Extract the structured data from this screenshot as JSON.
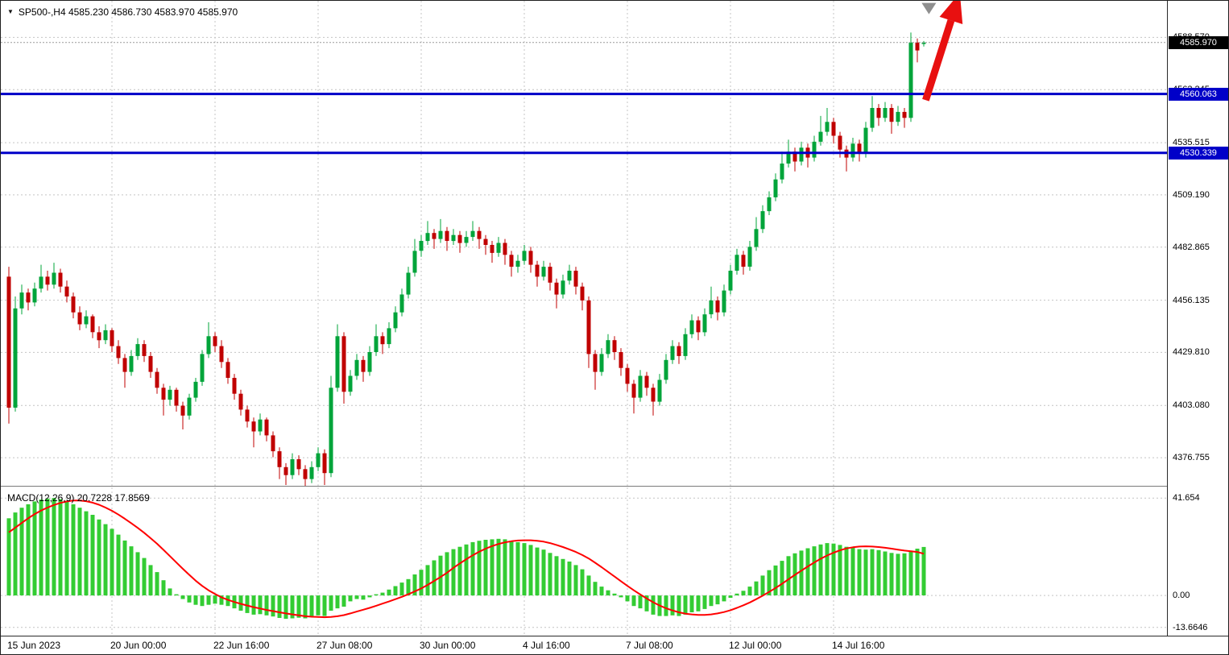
{
  "header": {
    "symbol_marker": "▼",
    "title": "SP500-,H4 4585.230 4586.730 4583.970 4585.970"
  },
  "macd": {
    "label": "MACD(12,26,9) 20.7228 17.8569",
    "axis_labels": [
      "41.654",
      "0.00",
      "-13.6646"
    ],
    "axis_values": [
      41.654,
      0,
      -13.6646
    ]
  },
  "price_axis": {
    "tick_labels": [
      "4588.570",
      "4562.245",
      "4535.515",
      "4509.190",
      "4482.865",
      "4456.135",
      "4429.810",
      "4403.080",
      "4376.755"
    ],
    "tick_values": [
      4588.57,
      4562.245,
      4535.515,
      4509.19,
      4482.865,
      4456.135,
      4429.81,
      4403.08,
      4376.755
    ],
    "current_price_label": "4585.970",
    "line_badges": [
      {
        "label": "4560.063",
        "value": 4560.063
      },
      {
        "label": "4530.339",
        "value": 4530.339
      }
    ]
  },
  "time_axis": {
    "labels": [
      "15 Jun 2023",
      "20 Jun 00:00",
      "22 Jun 16:00",
      "27 Jun 08:00",
      "30 Jun 00:00",
      "4 Jul 16:00",
      "7 Jul 08:00",
      "12 Jul 00:00",
      "14 Jul 16:00"
    ],
    "bar_indices": [
      0,
      16,
      32,
      48,
      64,
      80,
      96,
      112,
      128
    ]
  },
  "colors": {
    "bull": "#00a43a",
    "bear": "#c00000",
    "macd_hist": "#33cc33",
    "macd_signal": "#ff0000",
    "level_line": "#0000c8",
    "current_badge_bg": "#000000",
    "grid": "#c4c4c4",
    "arrow": "#e81010",
    "marker": "#8f8f8f"
  },
  "annotations": [
    {
      "type": "arrow",
      "from_bar": 142.3,
      "from_price": 4557,
      "to_bar": 147.6,
      "to_price": 4611,
      "color": "#e81010"
    },
    {
      "type": "triangle-marker",
      "bar": 142.8,
      "price": 4603.5,
      "color": "#8f8f8f"
    }
  ],
  "chart_data": [
    {
      "type": "candlestick",
      "title": "SP500-",
      "timeframe": "H4",
      "ylim": [
        4362.6,
        4607.0
      ],
      "grid": true,
      "current_price": 4585.97,
      "current_ohlc": [
        4585.23,
        4586.73,
        4583.97,
        4585.97
      ],
      "horizontal_lines": [
        4560.063,
        4530.339
      ],
      "ohlc": [
        [
          4468,
          4473,
          4394,
          4402
        ],
        [
          4402,
          4458,
          4400,
          4452
        ],
        [
          4452,
          4464,
          4449,
          4460
        ],
        [
          4460,
          4462,
          4451,
          4455
        ],
        [
          4455,
          4465,
          4453,
          4462
        ],
        [
          4462,
          4474,
          4460,
          4468
        ],
        [
          4468,
          4471,
          4461,
          4464
        ],
        [
          4464,
          4475,
          4462,
          4470
        ],
        [
          4470,
          4472,
          4460,
          4463
        ],
        [
          4463,
          4466,
          4455,
          4458
        ],
        [
          4458,
          4460,
          4447,
          4450
        ],
        [
          4450,
          4453,
          4441,
          4444
        ],
        [
          4444,
          4451,
          4442,
          4448
        ],
        [
          4448,
          4449,
          4437,
          4440
        ],
        [
          4440,
          4443,
          4432,
          4436
        ],
        [
          4436,
          4444,
          4434,
          4441
        ],
        [
          4441,
          4442,
          4430,
          4433
        ],
        [
          4433,
          4436,
          4424,
          4427
        ],
        [
          4427,
          4429,
          4412,
          4420
        ],
        [
          4420,
          4431,
          4418,
          4428
        ],
        [
          4428,
          4437,
          4426,
          4434
        ],
        [
          4434,
          4436,
          4425,
          4428
        ],
        [
          4428,
          4430,
          4417,
          4420
        ],
        [
          4420,
          4422,
          4409,
          4412
        ],
        [
          4412,
          4414,
          4398,
          4406
        ],
        [
          4406,
          4413,
          4403,
          4411
        ],
        [
          4411,
          4412,
          4400,
          4403
        ],
        [
          4403,
          4405,
          4391,
          4398
        ],
        [
          4398,
          4409,
          4396,
          4407
        ],
        [
          4407,
          4417,
          4405,
          4415
        ],
        [
          4415,
          4431,
          4413,
          4429
        ],
        [
          4429,
          4445,
          4427,
          4438
        ],
        [
          4438,
          4440,
          4430,
          4433
        ],
        [
          4433,
          4436,
          4422,
          4425
        ],
        [
          4425,
          4427,
          4414,
          4417
        ],
        [
          4417,
          4419,
          4406,
          4409
        ],
        [
          4409,
          4411,
          4398,
          4401
        ],
        [
          4401,
          4403,
          4392,
          4395
        ],
        [
          4395,
          4397,
          4382,
          4390
        ],
        [
          4390,
          4399,
          4388,
          4396
        ],
        [
          4396,
          4397,
          4385,
          4388
        ],
        [
          4388,
          4390,
          4377,
          4380
        ],
        [
          4380,
          4382,
          4366,
          4372
        ],
        [
          4372,
          4374,
          4363,
          4368
        ],
        [
          4368,
          4379,
          4366,
          4376
        ],
        [
          4376,
          4378,
          4368,
          4371
        ],
        [
          4371,
          4373,
          4362,
          4366
        ],
        [
          4366,
          4375,
          4364,
          4372
        ],
        [
          4372,
          4382,
          4370,
          4379
        ],
        [
          4379,
          4381,
          4363,
          4369
        ],
        [
          4369,
          4418,
          4367,
          4412
        ],
        [
          4412,
          4444,
          4410,
          4438
        ],
        [
          4438,
          4440,
          4404,
          4410
        ],
        [
          4410,
          4421,
          4408,
          4418
        ],
        [
          4418,
          4429,
          4416,
          4426
        ],
        [
          4426,
          4428,
          4415,
          4420
        ],
        [
          4420,
          4433,
          4418,
          4430
        ],
        [
          4430,
          4444,
          4428,
          4438
        ],
        [
          4438,
          4440,
          4429,
          4434
        ],
        [
          4434,
          4445,
          4432,
          4442
        ],
        [
          4442,
          4453,
          4440,
          4450
        ],
        [
          4450,
          4462,
          4448,
          4459
        ],
        [
          4459,
          4473,
          4457,
          4470
        ],
        [
          4470,
          4487,
          4468,
          4481
        ],
        [
          4481,
          4489,
          4478,
          4486
        ],
        [
          4486,
          4496,
          4484,
          4490
        ],
        [
          4490,
          4492,
          4482,
          4487
        ],
        [
          4487,
          4497,
          4485,
          4491
        ],
        [
          4491,
          4493,
          4481,
          4486
        ],
        [
          4486,
          4492,
          4484,
          4489
        ],
        [
          4489,
          4491,
          4480,
          4485
        ],
        [
          4485,
          4491,
          4483,
          4488
        ],
        [
          4488,
          4496,
          4486,
          4491
        ],
        [
          4491,
          4493,
          4482,
          4487
        ],
        [
          4487,
          4489,
          4479,
          4484
        ],
        [
          4484,
          4486,
          4475,
          4480
        ],
        [
          4480,
          4488,
          4478,
          4485
        ],
        [
          4485,
          4487,
          4474,
          4479
        ],
        [
          4479,
          4481,
          4468,
          4473
        ],
        [
          4473,
          4479,
          4470,
          4476
        ],
        [
          4476,
          4484,
          4474,
          4481
        ],
        [
          4481,
          4483,
          4470,
          4474
        ],
        [
          4474,
          4476,
          4463,
          4468
        ],
        [
          4468,
          4476,
          4466,
          4473
        ],
        [
          4473,
          4475,
          4461,
          4465
        ],
        [
          4465,
          4467,
          4452,
          4459
        ],
        [
          4459,
          4469,
          4457,
          4466
        ],
        [
          4466,
          4474,
          4464,
          4471
        ],
        [
          4471,
          4473,
          4459,
          4463
        ],
        [
          4463,
          4465,
          4451,
          4456
        ],
        [
          4456,
          4458,
          4422,
          4429
        ],
        [
          4429,
          4431,
          4411,
          4420
        ],
        [
          4420,
          4432,
          4418,
          4429
        ],
        [
          4429,
          4439,
          4427,
          4436
        ],
        [
          4436,
          4438,
          4426,
          4430
        ],
        [
          4430,
          4432,
          4418,
          4422
        ],
        [
          4422,
          4424,
          4410,
          4414
        ],
        [
          4414,
          4416,
          4399,
          4407
        ],
        [
          4407,
          4421,
          4405,
          4418
        ],
        [
          4418,
          4420,
          4408,
          4412
        ],
        [
          4412,
          4414,
          4398,
          4405
        ],
        [
          4405,
          4419,
          4403,
          4416
        ],
        [
          4416,
          4429,
          4414,
          4426
        ],
        [
          4426,
          4436,
          4424,
          4433
        ],
        [
          4433,
          4435,
          4424,
          4428
        ],
        [
          4428,
          4442,
          4426,
          4439
        ],
        [
          4439,
          4449,
          4437,
          4446
        ],
        [
          4446,
          4448,
          4436,
          4440
        ],
        [
          4440,
          4452,
          4438,
          4449
        ],
        [
          4449,
          4463,
          4447,
          4456
        ],
        [
          4456,
          4458,
          4446,
          4450
        ],
        [
          4450,
          4464,
          4448,
          4461
        ],
        [
          4461,
          4474,
          4459,
          4471
        ],
        [
          4471,
          4482,
          4469,
          4479
        ],
        [
          4479,
          4481,
          4469,
          4473
        ],
        [
          4473,
          4486,
          4471,
          4483
        ],
        [
          4483,
          4498,
          4481,
          4492
        ],
        [
          4492,
          4504,
          4490,
          4501
        ],
        [
          4501,
          4511,
          4499,
          4508
        ],
        [
          4508,
          4520,
          4506,
          4517
        ],
        [
          4517,
          4531,
          4515,
          4525
        ],
        [
          4525,
          4537,
          4523,
          4531
        ],
        [
          4531,
          4533,
          4521,
          4526
        ],
        [
          4526,
          4536,
          4524,
          4533
        ],
        [
          4533,
          4535,
          4523,
          4528
        ],
        [
          4528,
          4539,
          4526,
          4536
        ],
        [
          4536,
          4549,
          4534,
          4541
        ],
        [
          4541,
          4553,
          4539,
          4546
        ],
        [
          4546,
          4548,
          4535,
          4539
        ],
        [
          4539,
          4541,
          4528,
          4532
        ],
        [
          4532,
          4534,
          4521,
          4528
        ],
        [
          4528,
          4538,
          4526,
          4535
        ],
        [
          4535,
          4537,
          4526,
          4530
        ],
        [
          4530,
          4546,
          4528,
          4543
        ],
        [
          4543,
          4559,
          4541,
          4553
        ],
        [
          4553,
          4555,
          4544,
          4548
        ],
        [
          4548,
          4556,
          4546,
          4553
        ],
        [
          4553,
          4555,
          4540,
          4546
        ],
        [
          4546,
          4554,
          4544,
          4551
        ],
        [
          4551,
          4553,
          4543,
          4548
        ],
        [
          4548,
          4591,
          4546,
          4586
        ],
        [
          4586,
          4588,
          4576,
          4582
        ],
        [
          4585.23,
          4586.73,
          4583.97,
          4585.97
        ]
      ]
    },
    {
      "type": "macd",
      "subtype": "bar+line",
      "params": "12,26,9",
      "ylim": [
        -17.2,
        46.2
      ],
      "current_values": [
        20.7228,
        17.8569
      ],
      "histogram": [
        33.0,
        35.5,
        37.5,
        39.0,
        40.2,
        41.0,
        41.4,
        41.654,
        41.2,
        40.3,
        39.0,
        37.5,
        36.0,
        34.5,
        32.5,
        30.5,
        28.5,
        26.0,
        23.5,
        21.0,
        18.5,
        16.0,
        13.0,
        10.0,
        6.5,
        3.0,
        0.5,
        -1.5,
        -3.0,
        -4.0,
        -4.5,
        -4.0,
        -3.5,
        -4.0,
        -4.5,
        -5.5,
        -6.5,
        -7.5,
        -8.2,
        -8.0,
        -8.5,
        -9.0,
        -9.6,
        -10.0,
        -9.8,
        -9.5,
        -9.8,
        -9.2,
        -8.5,
        -8.8,
        -6.5,
        -5.5,
        -4.8,
        -2.5,
        -1.5,
        -1.8,
        -0.8,
        0.5,
        1.2,
        2.5,
        4.0,
        5.5,
        7.0,
        9.0,
        11.0,
        13.0,
        15.0,
        17.0,
        18.5,
        19.8,
        20.8,
        21.8,
        22.8,
        23.4,
        23.8,
        24.0,
        24.2,
        24.0,
        23.4,
        22.8,
        22.4,
        21.6,
        20.5,
        19.6,
        18.2,
        16.8,
        15.6,
        14.5,
        13.0,
        11.2,
        8.5,
        5.8,
        3.8,
        2.2,
        0.8,
        -0.8,
        -2.5,
        -4.5,
        -5.5,
        -6.8,
        -8.2,
        -8.8,
        -8.8,
        -8.5,
        -8.8,
        -8.2,
        -7.2,
        -6.8,
        -5.8,
        -4.5,
        -3.8,
        -2.5,
        -1.0,
        0.8,
        2.0,
        3.8,
        6.0,
        8.5,
        10.8,
        12.8,
        14.8,
        16.8,
        18.0,
        19.2,
        20.2,
        21.0,
        21.8,
        22.4,
        22.2,
        21.6,
        20.8,
        20.4,
        19.8,
        19.6,
        19.8,
        19.4,
        18.8,
        18.2,
        17.8,
        18.0,
        19.2,
        20.0,
        20.7228
      ],
      "signal": [
        27.0,
        29.0,
        31.0,
        33.0,
        34.8,
        36.3,
        37.6,
        38.7,
        39.6,
        40.2,
        40.6,
        40.6,
        40.3,
        39.7,
        38.8,
        37.6,
        36.2,
        34.6,
        32.8,
        30.9,
        28.9,
        26.8,
        24.5,
        22.1,
        19.5,
        16.8,
        14.1,
        11.4,
        8.8,
        6.3,
        4.1,
        2.2,
        0.6,
        -0.8,
        -1.9,
        -2.8,
        -3.6,
        -4.3,
        -5.0,
        -5.6,
        -6.2,
        -6.7,
        -7.2,
        -7.7,
        -8.1,
        -8.5,
        -8.9,
        -9.1,
        -9.2,
        -9.3,
        -9.2,
        -8.9,
        -8.4,
        -7.7,
        -6.9,
        -6.1,
        -5.3,
        -4.4,
        -3.5,
        -2.6,
        -1.6,
        -0.6,
        0.5,
        1.7,
        3.0,
        4.5,
        6.2,
        7.9,
        9.7,
        11.8,
        13.7,
        15.5,
        17.2,
        18.7,
        20.0,
        21.1,
        22.0,
        22.7,
        23.2,
        23.5,
        23.6,
        23.6,
        23.4,
        23.0,
        22.4,
        21.6,
        20.7,
        19.7,
        18.6,
        17.3,
        15.8,
        14.0,
        12.1,
        10.1,
        8.1,
        6.1,
        4.1,
        2.2,
        0.4,
        -1.3,
        -2.9,
        -4.3,
        -5.5,
        -6.4,
        -7.2,
        -7.8,
        -8.1,
        -8.3,
        -8.3,
        -8.1,
        -7.7,
        -7.1,
        -6.3,
        -5.3,
        -4.2,
        -3.0,
        -1.6,
        -0.1,
        1.5,
        3.2,
        5.0,
        6.9,
        8.8,
        10.6,
        12.4,
        14.1,
        15.7,
        17.1,
        18.3,
        19.3,
        20.1,
        20.6,
        20.9,
        21.0,
        20.9,
        20.7,
        20.4,
        20.0,
        19.6,
        19.2,
        18.9,
        18.6,
        17.8569
      ]
    }
  ]
}
